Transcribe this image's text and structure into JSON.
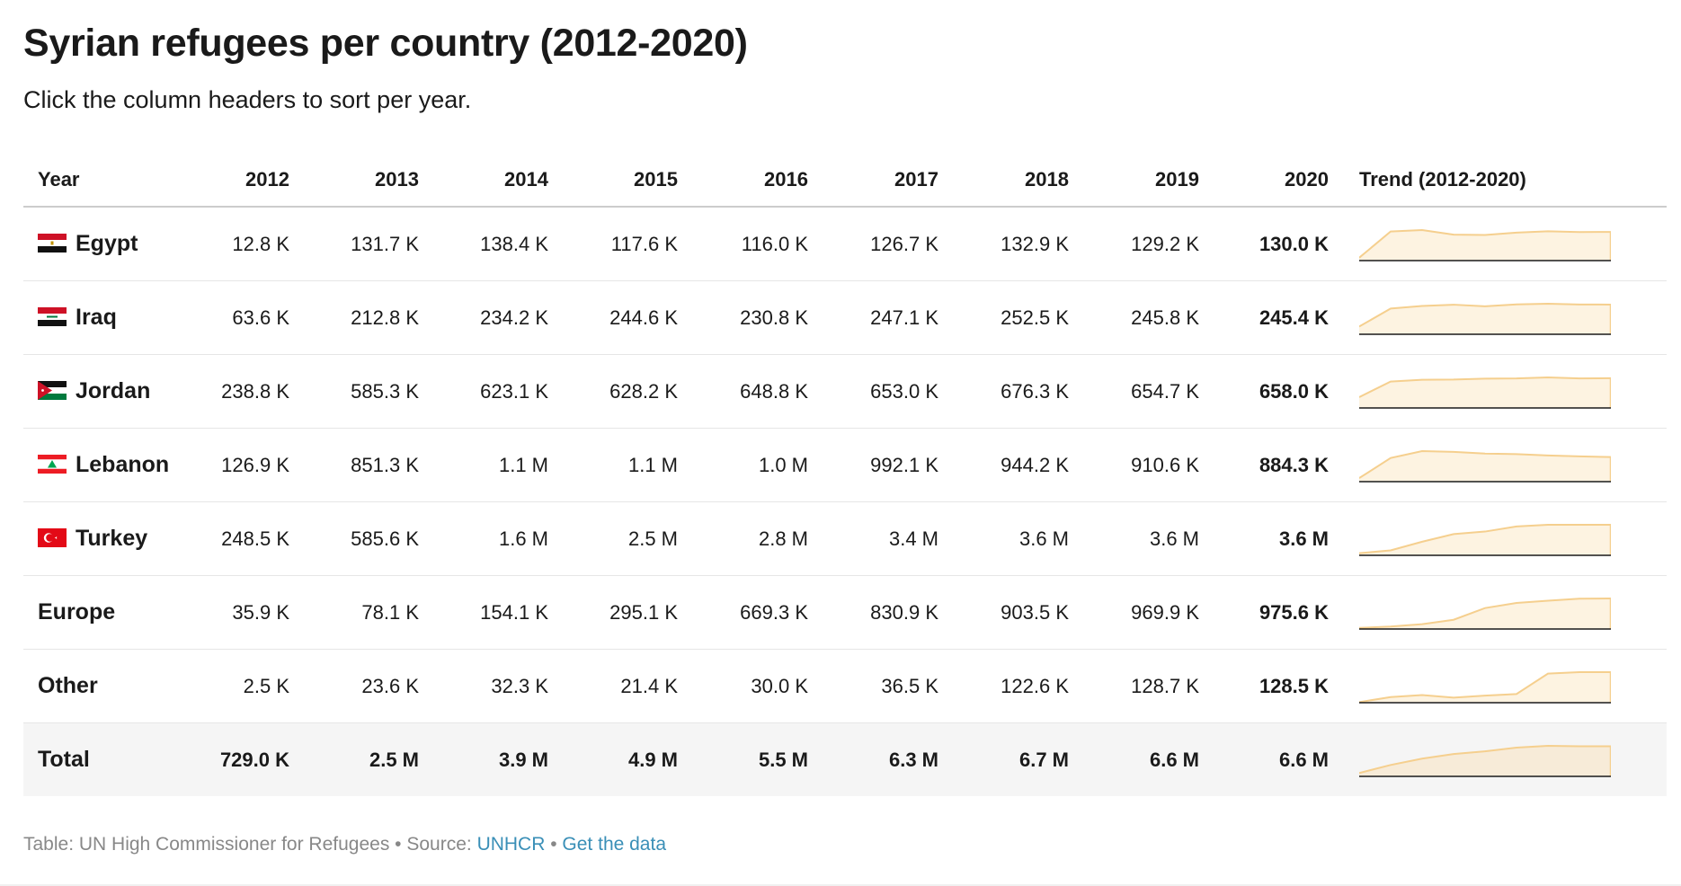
{
  "title": "Syrian refugees per country (2012-2020)",
  "subtitle": "Click the column headers to sort per year.",
  "header": {
    "first": "Year",
    "years": [
      "2012",
      "2013",
      "2014",
      "2015",
      "2016",
      "2017",
      "2018",
      "2019",
      "2020"
    ],
    "trend": "Trend (2012-2020)"
  },
  "chart_data": {
    "type": "table",
    "columns": [
      "2012",
      "2013",
      "2014",
      "2015",
      "2016",
      "2017",
      "2018",
      "2019",
      "2020"
    ],
    "rows": [
      {
        "name": "Egypt",
        "flag": "egypt-flag-icon",
        "display": [
          "12.8 K",
          "131.7 K",
          "138.4 K",
          "117.6 K",
          "116.0 K",
          "126.7 K",
          "132.9 K",
          "129.2 K",
          "130.0 K"
        ],
        "values": [
          12800,
          131700,
          138400,
          117600,
          116000,
          126700,
          132900,
          129200,
          130000
        ]
      },
      {
        "name": "Iraq",
        "flag": "iraq-flag-icon",
        "display": [
          "63.6 K",
          "212.8 K",
          "234.2 K",
          "244.6 K",
          "230.8 K",
          "247.1 K",
          "252.5 K",
          "245.8 K",
          "245.4 K"
        ],
        "values": [
          63600,
          212800,
          234200,
          244600,
          230800,
          247100,
          252500,
          245800,
          245400
        ]
      },
      {
        "name": "Jordan",
        "flag": "jordan-flag-icon",
        "display": [
          "238.8 K",
          "585.3 K",
          "623.1 K",
          "628.2 K",
          "648.8 K",
          "653.0 K",
          "676.3 K",
          "654.7 K",
          "658.0 K"
        ],
        "values": [
          238800,
          585300,
          623100,
          628200,
          648800,
          653000,
          676300,
          654700,
          658000
        ]
      },
      {
        "name": "Lebanon",
        "flag": "lebanon-flag-icon",
        "display": [
          "126.9 K",
          "851.3 K",
          "1.1 M",
          "1.1 M",
          "1.0 M",
          "992.1 K",
          "944.2 K",
          "910.6 K",
          "884.3 K"
        ],
        "values": [
          126900,
          851300,
          1100000,
          1070000,
          1010000,
          992100,
          944200,
          910600,
          884300
        ]
      },
      {
        "name": "Turkey",
        "flag": "turkey-flag-icon",
        "display": [
          "248.5 K",
          "585.6 K",
          "1.6 M",
          "2.5 M",
          "2.8 M",
          "3.4 M",
          "3.6 M",
          "3.6 M",
          "3.6 M"
        ],
        "values": [
          248500,
          585600,
          1600000,
          2500000,
          2800000,
          3400000,
          3600000,
          3600000,
          3600000
        ]
      },
      {
        "name": "Europe",
        "flag": "",
        "display": [
          "35.9 K",
          "78.1 K",
          "154.1 K",
          "295.1 K",
          "669.3 K",
          "830.9 K",
          "903.5 K",
          "969.9 K",
          "975.6 K"
        ],
        "values": [
          35900,
          78100,
          154100,
          295100,
          669300,
          830900,
          903500,
          969900,
          975600
        ]
      },
      {
        "name": "Other",
        "flag": "",
        "display": [
          "2.5 K",
          "23.6 K",
          "32.3 K",
          "21.4 K",
          "30.0 K",
          "36.5 K",
          "122.6 K",
          "128.7 K",
          "128.5 K"
        ],
        "values": [
          2500,
          23600,
          32300,
          21400,
          30000,
          36500,
          122600,
          128700,
          128500
        ]
      }
    ],
    "total": {
      "name": "Total",
      "display": [
        "729.0 K",
        "2.5 M",
        "3.9 M",
        "4.9 M",
        "5.5 M",
        "6.3 M",
        "6.7 M",
        "6.6 M",
        "6.6 M"
      ],
      "values": [
        729000,
        2500000,
        3900000,
        4900000,
        5500000,
        6300000,
        6700000,
        6600000,
        6600000
      ]
    },
    "sparkline": {
      "type": "area",
      "fill": "#fdf3e1",
      "stroke": "#f5cf8e",
      "baseline": "#1a1a1a",
      "total_fill": "#f7ebd8"
    }
  },
  "footer": {
    "prefix": "Table: UN High Commissioner for Refugees • Source: ",
    "source_link": "UNHCR",
    "separator": " • ",
    "data_link": "Get the data"
  }
}
